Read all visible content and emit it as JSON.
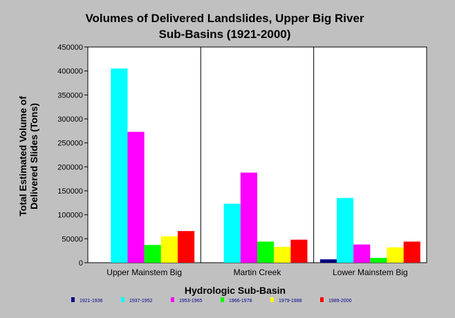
{
  "chart_data": {
    "type": "bar",
    "title": "Volumes of Delivered Landslides, Upper Big River Sub-Basins (1921-2000)",
    "title_lines": [
      "Volumes of Delivered Landslides, Upper Big River",
      "Sub-Basins (1921-2000)"
    ],
    "xlabel": "Hydrologic Sub-Basin",
    "ylabel": "Total Estimated Volume of Delivered Slides (Tons)",
    "ylabel_lines": [
      "Total Estimated Volume of",
      "Delivered Slides (Tons)"
    ],
    "ylim": [
      0,
      450000
    ],
    "yticks": [
      "0",
      "50000",
      "100000",
      "150000",
      "200000",
      "250000",
      "300000",
      "350000",
      "400000",
      "450000"
    ],
    "categories": [
      "Upper Mainstem Big",
      "Martin Creek",
      "Lower Mainstem Big"
    ],
    "series": [
      {
        "name": "1921-1936",
        "color": "#000080",
        "values": [
          0,
          0,
          7000
        ]
      },
      {
        "name": "1937-1952",
        "color": "#00ffff",
        "values": [
          405000,
          123000,
          135000
        ]
      },
      {
        "name": "1953-1965",
        "color": "#ff00ff",
        "values": [
          273000,
          188000,
          38000
        ]
      },
      {
        "name": "1966-1978",
        "color": "#00ff00",
        "values": [
          37000,
          44000,
          10000
        ]
      },
      {
        "name": "1979-1988",
        "color": "#ffff00",
        "values": [
          55000,
          33000,
          32000
        ]
      },
      {
        "name": "1989-2000",
        "color": "#ff0000",
        "values": [
          66000,
          48000,
          44000
        ]
      }
    ],
    "grid": false,
    "legend_position": "bottom",
    "background_color": "#c0c0c0",
    "plot_background_color": "#ffffff"
  }
}
